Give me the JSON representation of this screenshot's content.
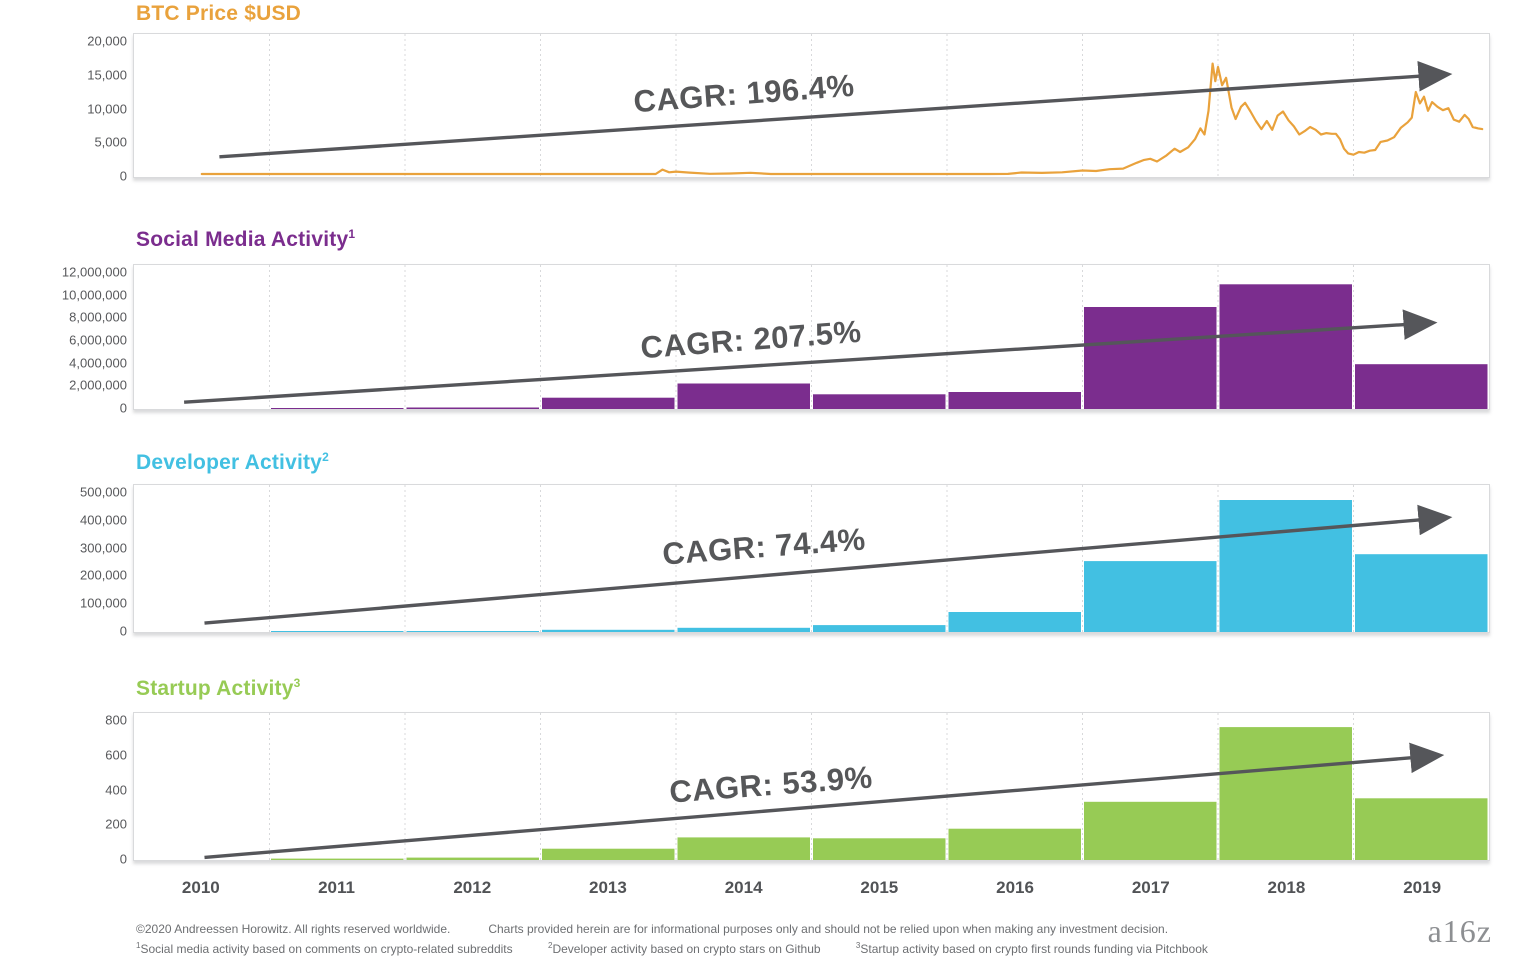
{
  "x_axis": {
    "labels": [
      "2010",
      "2011",
      "2012",
      "2013",
      "2014",
      "2015",
      "2016",
      "2017",
      "2018",
      "2019"
    ]
  },
  "footer": {
    "copyright": "©2020 Andreessen Horowitz. All rights reserved worldwide.",
    "disclaimer": "Charts provided herein are for informational purposes only and should not be relied upon when making any investment decision.",
    "fn1_sup": "1",
    "fn1": "Social media activity based on comments on crypto-related subreddits",
    "fn2_sup": "2",
    "fn2": "Developer activity based on crypto stars on Github",
    "fn3_sup": "3",
    "fn3": "Startup activity based on crypto first rounds funding via Pitchbook",
    "logo": "a16z"
  },
  "chart_data": [
    {
      "id": "btc_price",
      "type": "line",
      "title": "BTC Price $USD",
      "sup": "",
      "cagr_label": "CAGR: 196.4%",
      "cagr_value_pct": 196.4,
      "color": "#E9A23C",
      "ylabel": "BTC Price $USD",
      "ylim": [
        0,
        20000
      ],
      "yticks": [
        "20,000",
        "15,000",
        "10,000",
        "5,000",
        "0"
      ],
      "x": [
        2010.5,
        2010.8,
        2011.0,
        2011.2,
        2011.35,
        2011.45,
        2011.6,
        2011.8,
        2012.0,
        2012.3,
        2012.6,
        2012.9,
        2013.05,
        2013.2,
        2013.27,
        2013.33,
        2013.45,
        2013.6,
        2013.75,
        2013.85,
        2013.9,
        2013.95,
        2014.0,
        2014.1,
        2014.25,
        2014.4,
        2014.55,
        2014.7,
        2014.85,
        2015.0,
        2015.15,
        2015.3,
        2015.5,
        2015.7,
        2015.85,
        2016.0,
        2016.15,
        2016.3,
        2016.45,
        2016.55,
        2016.7,
        2016.85,
        2017.0,
        2017.1,
        2017.2,
        2017.3,
        2017.4,
        2017.45,
        2017.5,
        2017.55,
        2017.62,
        2017.68,
        2017.72,
        2017.78,
        2017.83,
        2017.87,
        2017.9,
        2017.93,
        2017.96,
        2017.98,
        2018.0,
        2018.03,
        2018.06,
        2018.1,
        2018.13,
        2018.17,
        2018.2,
        2018.24,
        2018.28,
        2018.32,
        2018.36,
        2018.4,
        2018.44,
        2018.48,
        2018.52,
        2018.56,
        2018.6,
        2018.64,
        2018.68,
        2018.72,
        2018.76,
        2018.8,
        2018.84,
        2018.87,
        2018.9,
        2018.93,
        2018.96,
        2019.0,
        2019.04,
        2019.08,
        2019.12,
        2019.16,
        2019.2,
        2019.25,
        2019.3,
        2019.35,
        2019.4,
        2019.43,
        2019.46,
        2019.49,
        2019.52,
        2019.55,
        2019.58,
        2019.62,
        2019.66,
        2019.7,
        2019.74,
        2019.78,
        2019.82,
        2019.85,
        2019.88,
        2019.92,
        2019.95
      ],
      "values": [
        0.1,
        0.2,
        0.3,
        1,
        8,
        30,
        12,
        4,
        5,
        6,
        9,
        13,
        14,
        60,
        230,
        95,
        110,
        120,
        140,
        420,
        1100,
        700,
        800,
        650,
        480,
        520,
        620,
        440,
        360,
        290,
        230,
        255,
        270,
        245,
        320,
        430,
        415,
        440,
        460,
        660,
        610,
        700,
        970,
        890,
        1150,
        1250,
        2100,
        2500,
        2700,
        2300,
        3200,
        4200,
        3700,
        4400,
        5600,
        7200,
        6300,
        9800,
        16800,
        14200,
        16300,
        13600,
        14700,
        10300,
        8600,
        10400,
        11000,
        9700,
        8300,
        7100,
        8300,
        7000,
        9100,
        9700,
        8400,
        7500,
        6300,
        6800,
        7400,
        7000,
        6300,
        6500,
        6400,
        6400,
        5600,
        4200,
        3500,
        3300,
        3700,
        3600,
        3900,
        4000,
        5200,
        5400,
        5900,
        7300,
        8100,
        8800,
        12600,
        10900,
        11900,
        9800,
        11100,
        10400,
        9900,
        10200,
        8500,
        8200,
        9200,
        8600,
        7400,
        7200,
        7100
      ],
      "arrow": {
        "x1f": 0.063,
        "v1": 3000,
        "x2f": 0.968,
        "v2": 15200
      }
    },
    {
      "id": "social_media_activity",
      "type": "bar",
      "title": "Social Media Activity",
      "sup": "1",
      "cagr_label": "CAGR: 207.5%",
      "cagr_value_pct": 207.5,
      "color": "#7B2D8E",
      "ylabel": "Social Media Activity",
      "ylim": [
        0,
        12000000
      ],
      "yticks": [
        "12,000,000",
        "10,000,000",
        "8,000,000",
        "6,000,000",
        "4,000,000",
        "2,000,000",
        "0"
      ],
      "categories": [
        "2010",
        "2011",
        "2012",
        "2013",
        "2014",
        "2015",
        "2016",
        "2017",
        "2018",
        "2019"
      ],
      "values": [
        0,
        60000,
        130000,
        1000000,
        2250000,
        1300000,
        1500000,
        9000000,
        11000000,
        3950000
      ],
      "arrow": {
        "x1f": 0.037,
        "v1": 600000,
        "x2f": 0.957,
        "v2": 7600000
      }
    },
    {
      "id": "developer_activity",
      "type": "bar",
      "title": "Developer Activity",
      "sup": "2",
      "cagr_label": "CAGR: 74.4%",
      "cagr_value_pct": 74.4,
      "color": "#42C0E2",
      "ylabel": "Developer Activity",
      "ylim": [
        0,
        500000
      ],
      "yticks": [
        "500,000",
        "400,000",
        "300,000",
        "200,000",
        "100,000",
        "0"
      ],
      "categories": [
        "2010",
        "2011",
        "2012",
        "2013",
        "2014",
        "2015",
        "2016",
        "2017",
        "2018",
        "2019"
      ],
      "values": [
        0,
        1000,
        3000,
        8000,
        15000,
        25000,
        72000,
        255000,
        475000,
        280000
      ],
      "arrow": {
        "x1f": 0.052,
        "v1": 32000,
        "x2f": 0.968,
        "v2": 411000
      }
    },
    {
      "id": "startup_activity",
      "type": "bar",
      "title": "Startup Activity",
      "sup": "3",
      "cagr_label": "CAGR: 53.9%",
      "cagr_value_pct": 53.9,
      "color": "#97CB55",
      "ylabel": "Startup Activity",
      "ylim": [
        0,
        800
      ],
      "yticks": [
        "800",
        "600",
        "400",
        "200",
        "0"
      ],
      "categories": [
        "2010",
        "2011",
        "2012",
        "2013",
        "2014",
        "2015",
        "2016",
        "2017",
        "2018",
        "2019"
      ],
      "values": [
        0,
        8,
        14,
        65,
        130,
        125,
        180,
        335,
        765,
        355
      ],
      "arrow": {
        "x1f": 0.052,
        "v1": 15,
        "x2f": 0.962,
        "v2": 601
      }
    }
  ]
}
